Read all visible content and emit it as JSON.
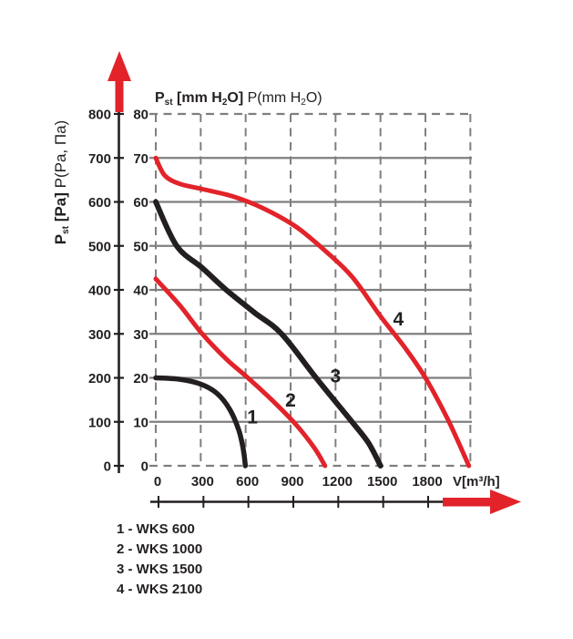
{
  "colors": {
    "red": "#e2232a",
    "ink": "#231f20",
    "grid": "#7f7f7f",
    "background": "#ffffff"
  },
  "chart_data": {
    "type": "line",
    "title": {
      "primary_p": "P",
      "primary_sub": "st",
      "primary_mid": " [mm H",
      "primary_sub2": "2",
      "primary_end": "O] ",
      "secondary_start": "P(mm H",
      "secondary_sub": "2",
      "secondary_end": "O)"
    },
    "y_axis_pa": {
      "title_p": "P",
      "title_sub": "st",
      "title_rest": " [Pa] ",
      "title_secondary": "P(Pa, Пa)",
      "unit": "Pa",
      "min": 0,
      "max": 800,
      "step": 100,
      "ticks": [
        800,
        700,
        600,
        500,
        400,
        300,
        200,
        100,
        0
      ]
    },
    "y_axis_mm": {
      "unit": "mm H2O",
      "min": 0,
      "max": 80,
      "step": 10,
      "ticks": [
        80,
        70,
        60,
        50,
        40,
        30,
        20,
        10,
        0
      ]
    },
    "x_axis": {
      "label": "V[m³/h]",
      "unit": "m3/h",
      "min": 0,
      "max": 2125,
      "step": 300,
      "ticks": [
        0,
        300,
        600,
        900,
        1200,
        1500,
        1800
      ]
    },
    "grid": {
      "vertical_lines_v": [
        0,
        300,
        600,
        900,
        1200,
        1500,
        1800,
        2100
      ],
      "horizontal_lines_pa": [
        0,
        100,
        200,
        300,
        400,
        500,
        600,
        700,
        800
      ],
      "dashed_horizontal_pa": [
        0,
        800
      ],
      "style": "gray grid, verticals dashed, top and bottom horizontals dashed"
    },
    "series": [
      {
        "id": "1",
        "name": "WKS 600",
        "color": "#231f20",
        "width": 5.5,
        "points_v_pa": [
          [
            0,
            200
          ],
          [
            150,
            197
          ],
          [
            280,
            188
          ],
          [
            380,
            172
          ],
          [
            450,
            150
          ],
          [
            510,
            118
          ],
          [
            555,
            80
          ],
          [
            580,
            45
          ],
          [
            592,
            18
          ],
          [
            598,
            0
          ]
        ]
      },
      {
        "id": "2",
        "name": "WKS 1000",
        "color": "#e2232a",
        "width": 5,
        "points_v_pa": [
          [
            0,
            425
          ],
          [
            160,
            365
          ],
          [
            310,
            300
          ],
          [
            470,
            243
          ],
          [
            615,
            200
          ],
          [
            780,
            148
          ],
          [
            940,
            92
          ],
          [
            1060,
            40
          ],
          [
            1130,
            0
          ]
        ]
      },
      {
        "id": "3",
        "name": "WKS 1500",
        "color": "#231f20",
        "width": 6,
        "points_v_pa": [
          [
            0,
            600
          ],
          [
            140,
            500
          ],
          [
            310,
            450
          ],
          [
            470,
            400
          ],
          [
            660,
            348
          ],
          [
            840,
            300
          ],
          [
            1070,
            200
          ],
          [
            1310,
            100
          ],
          [
            1420,
            52
          ],
          [
            1500,
            0
          ]
        ]
      },
      {
        "id": "4",
        "name": "WKS 2100",
        "color": "#e2232a",
        "width": 5,
        "points_v_pa": [
          [
            0,
            700
          ],
          [
            60,
            660
          ],
          [
            160,
            641
          ],
          [
            300,
            630
          ],
          [
            520,
            612
          ],
          [
            720,
            585
          ],
          [
            930,
            545
          ],
          [
            1120,
            492
          ],
          [
            1310,
            430
          ],
          [
            1500,
            340
          ],
          [
            1660,
            270
          ],
          [
            1800,
            200
          ],
          [
            1950,
            105
          ],
          [
            2090,
            0
          ]
        ]
      }
    ],
    "curve_labels": [
      {
        "text": "1",
        "v": 645,
        "pa": 112
      },
      {
        "text": "2",
        "v": 900,
        "pa": 150
      },
      {
        "text": "3",
        "v": 1200,
        "pa": 205
      },
      {
        "text": "4",
        "v": 1620,
        "pa": 335
      }
    ],
    "legend": [
      {
        "label": "1 - WKS 600"
      },
      {
        "label": "2 - WKS 1000"
      },
      {
        "label": "3 - WKS 1500"
      },
      {
        "label": "4 - WKS 2100"
      }
    ]
  }
}
